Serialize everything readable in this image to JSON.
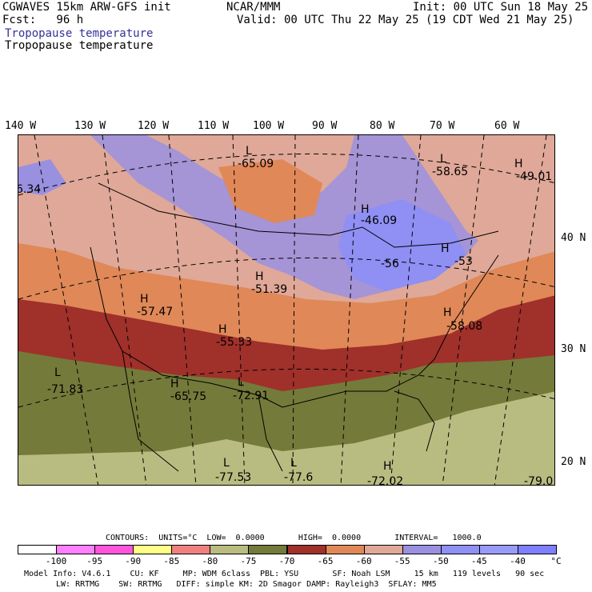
{
  "header": {
    "left_line1": "CGWAVES 15km ARW-GFS init",
    "left_line2": "Fcst:   96 h",
    "center_line1": "NCAR/MMM",
    "right_line1": "Init: 00 UTC Sun 18 May 25",
    "right_line2": "Valid: 00 UTC Thu 22 May 25 (19 CDT Wed 21 May 25)",
    "field_title_blue": "Tropopause temperature",
    "field_title_black": "Tropopause temperature"
  },
  "lon_labels": [
    "140 W",
    "130 W",
    "120 W",
    "110 W",
    "100 W",
    "90 W",
    "80 W",
    "70 W",
    "60 W"
  ],
  "lat_labels": [
    "40 N",
    "30 N",
    "20 N"
  ],
  "extrema": [
    {
      "type": "L",
      "value": "-65.09"
    },
    {
      "type": "L",
      "value": "-58.65"
    },
    {
      "type": "H",
      "value": "-49.01"
    },
    {
      "type": "H",
      "value": "-46.09"
    },
    {
      "type": "H",
      "value": "-56"
    },
    {
      "type": "H",
      "value": "-53"
    },
    {
      "type": "H",
      "value": "-51.39"
    },
    {
      "type": "H",
      "value": "-57.47"
    },
    {
      "type": "H",
      "value": "-55.33"
    },
    {
      "type": "H",
      "value": "-58.08"
    },
    {
      "type": "L",
      "value": "-71.83"
    },
    {
      "type": "H",
      "value": "-65.75"
    },
    {
      "type": "L",
      "value": "-72.91"
    },
    {
      "type": "L",
      "value": "-77.53"
    },
    {
      "type": "L",
      "value": "-77.6"
    },
    {
      "type": "H",
      "value": "-72.02"
    },
    {
      "type": "",
      "value": "-79.0"
    },
    {
      "type": "",
      "value": "6.34"
    }
  ],
  "footer": {
    "contours": "CONTOURS:  UNITS=°C  LOW=  0.0000       HIGH=  0.0000       INTERVAL=   1000.0",
    "model_line1": "Model Info: V4.6.1    CU: KF     MP: WDM 6class  PBL: YSU       SF: Noah LSM     15 km   119 levels   90 sec",
    "model_line2": "LW: RRTMG    SW: RRTMG   DIFF: simple KM: 2D Smagor DAMP: Rayleigh3  SFLAY: MM5"
  },
  "colorbar": {
    "colors": [
      "#ffffff",
      "#ff80ff",
      "#ff55dd",
      "#ffff88",
      "#f08080",
      "#b8bc80",
      "#747a3a",
      "#a0302a",
      "#e08858",
      "#e0a898",
      "#9a90e0",
      "#8f8ff4",
      "#9a9afa",
      "#7f7fff"
    ],
    "tick_labels": [
      "-100",
      "-95",
      "-90",
      "-85",
      "-80",
      "-75",
      "-70",
      "-65",
      "-60",
      "-55",
      "-50",
      "-45",
      "-40",
      "°C"
    ]
  }
}
